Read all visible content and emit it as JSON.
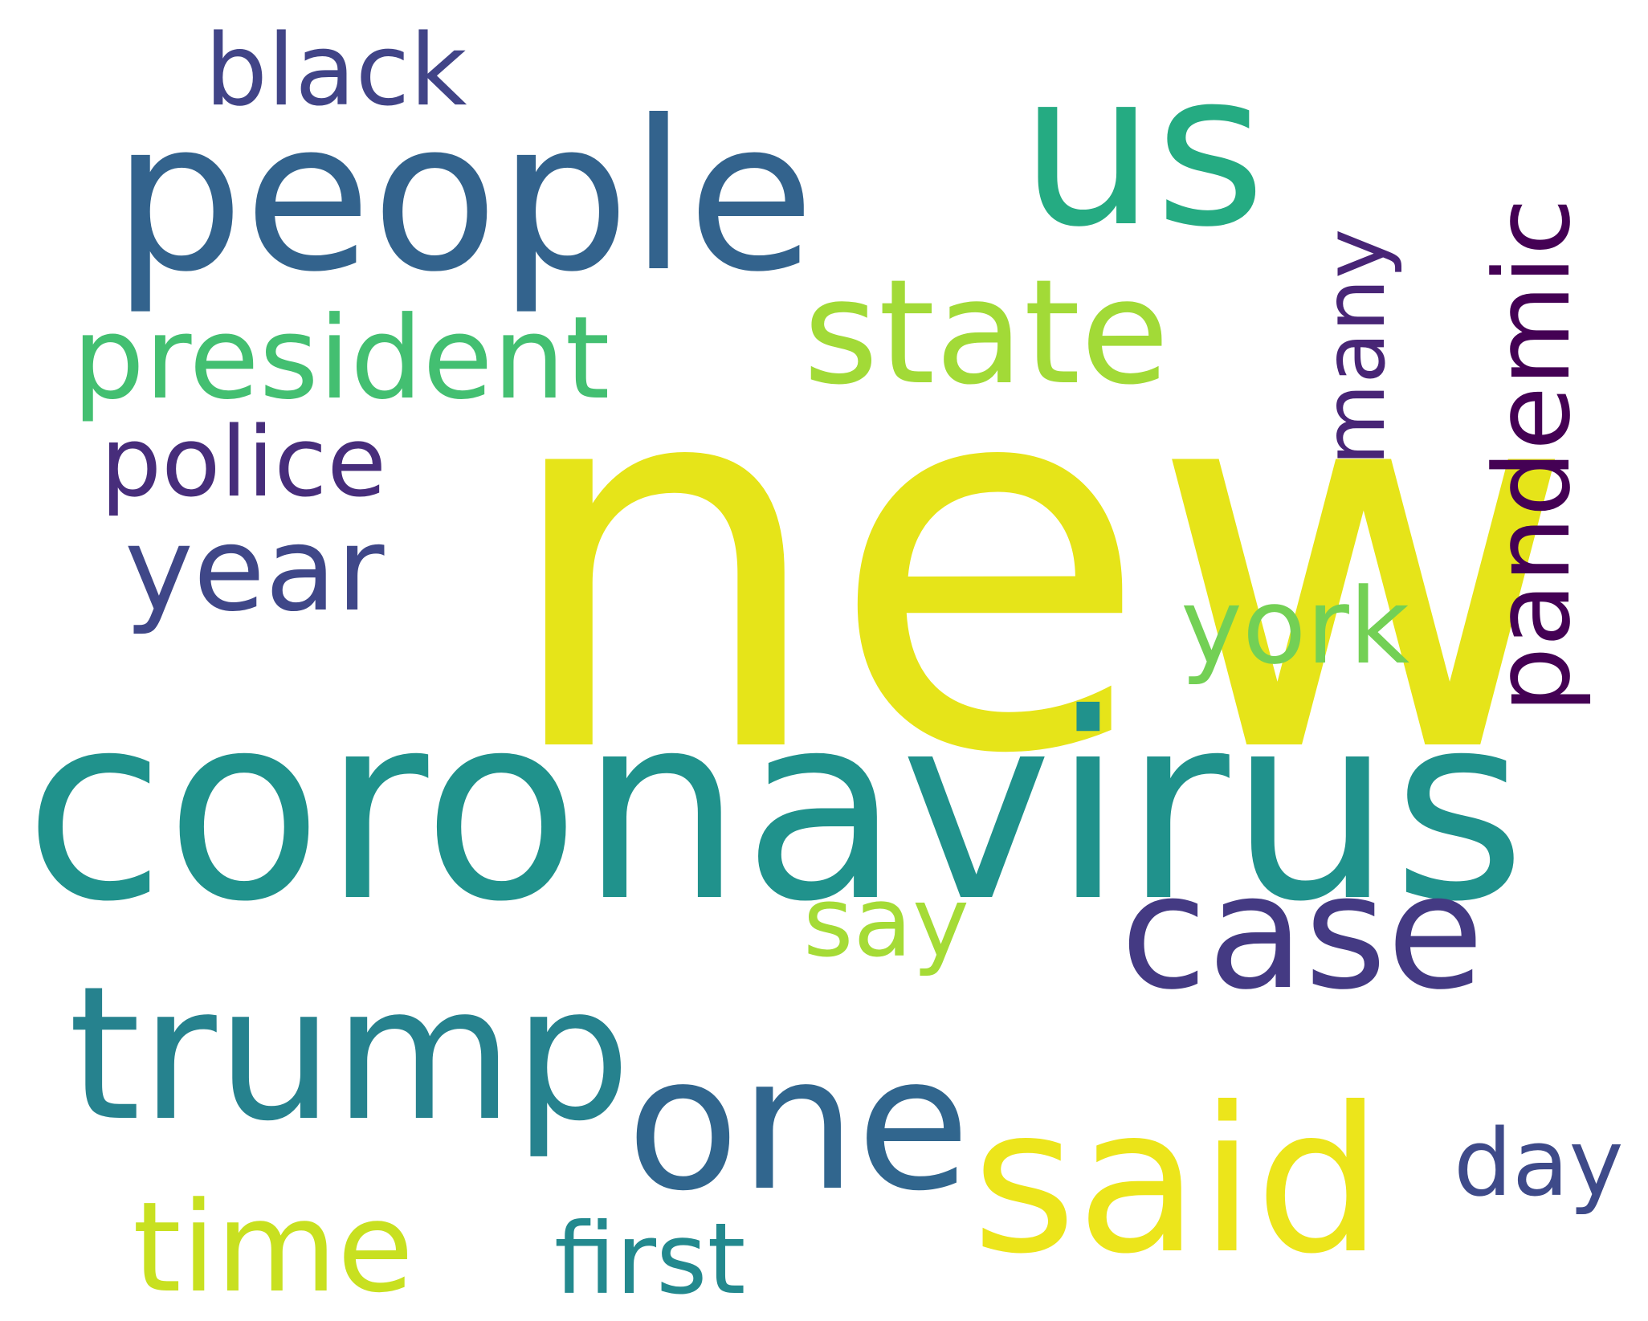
{
  "chart_data": {
    "type": "wordcloud",
    "background": "#ffffff",
    "words": [
      {
        "text": "new",
        "color": "#e6e419"
      },
      {
        "text": "coronavirus",
        "color": "#20928c"
      },
      {
        "text": "people",
        "color": "#33638d"
      },
      {
        "text": "us",
        "color": "#25ab82"
      },
      {
        "text": "state",
        "color": "#a2da37"
      },
      {
        "text": "trump",
        "color": "#26828e"
      },
      {
        "text": "said",
        "color": "#ece51b"
      },
      {
        "text": "one",
        "color": "#31668e"
      },
      {
        "text": "case",
        "color": "#443a83"
      },
      {
        "text": "time",
        "color": "#c8e020"
      },
      {
        "text": "president",
        "color": "#43bf71"
      },
      {
        "text": "pandemic",
        "color": "#440154"
      },
      {
        "text": "year",
        "color": "#3f4788"
      },
      {
        "text": "york",
        "color": "#73d055"
      },
      {
        "text": "police",
        "color": "#472d7b"
      },
      {
        "text": "black",
        "color": "#414487"
      },
      {
        "text": "many",
        "color": "#482576"
      },
      {
        "text": "say",
        "color": "#a5db36"
      },
      {
        "text": "first",
        "color": "#23898e"
      },
      {
        "text": "day",
        "color": "#3e4a89"
      }
    ]
  }
}
